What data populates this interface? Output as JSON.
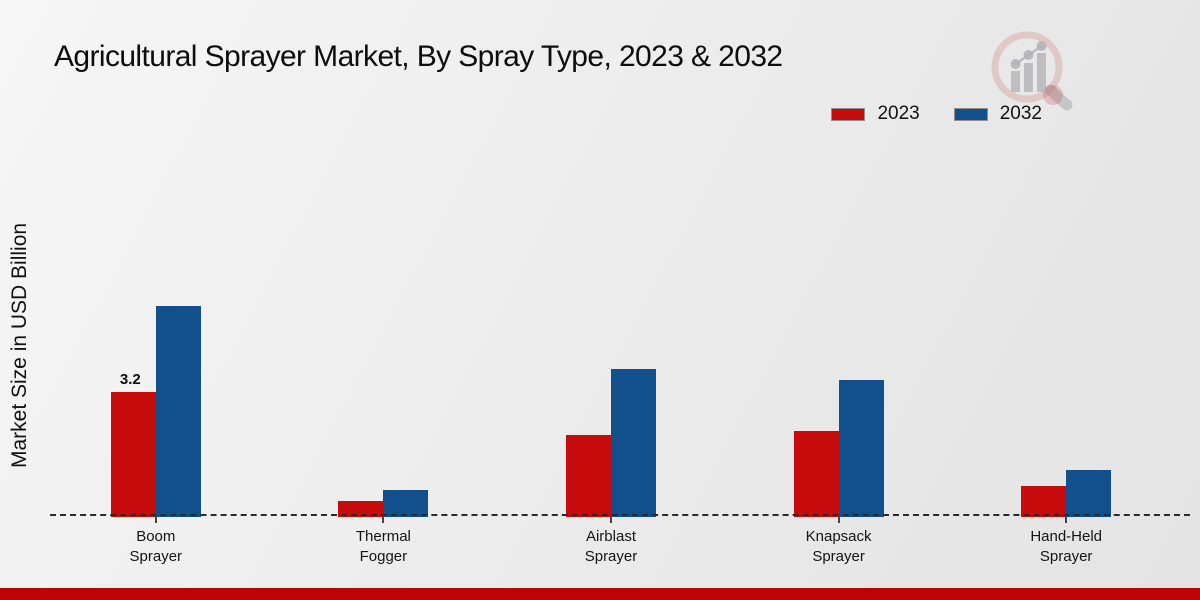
{
  "page": {
    "title": "Agricultural Sprayer Market, By Spray Type, 2023 & 2032",
    "ylabel": "Market Size in USD Billion"
  },
  "colors": {
    "series_2023": "#c60b0d",
    "series_2032": "#11508c",
    "footer_band": "#bb0404",
    "axis_line": "#2b2b2b",
    "text": "#111111"
  },
  "watermark": {
    "name": "magnifier-bar-chart-logo"
  },
  "chart_data": {
    "type": "bar",
    "title": "Agricultural Sprayer Market, By Spray Type, 2023 & 2032",
    "xlabel": "",
    "ylabel": "Market Size in USD Billion",
    "categories": [
      "Boom Sprayer",
      "Thermal Fogger",
      "Airblast Sprayer",
      "Knapsack Sprayer",
      "Hand-Held Sprayer"
    ],
    "series": [
      {
        "name": "2023",
        "color": "#c60b0d",
        "values": [
          3.2,
          0.4,
          2.1,
          2.2,
          0.8
        ],
        "labels": [
          "3.2",
          "",
          "",
          "",
          ""
        ]
      },
      {
        "name": "2032",
        "color": "#11508c",
        "values": [
          5.4,
          0.7,
          3.8,
          3.5,
          1.2
        ],
        "labels": [
          "",
          "",
          "",
          "",
          ""
        ]
      }
    ],
    "ylim": [
      0,
      6
    ],
    "grid": false,
    "legend_position": "top-right",
    "baseline_style": "dashed",
    "annotations": [
      {
        "text": "3.2",
        "target": "2023 Boom Sprayer bar"
      }
    ]
  }
}
